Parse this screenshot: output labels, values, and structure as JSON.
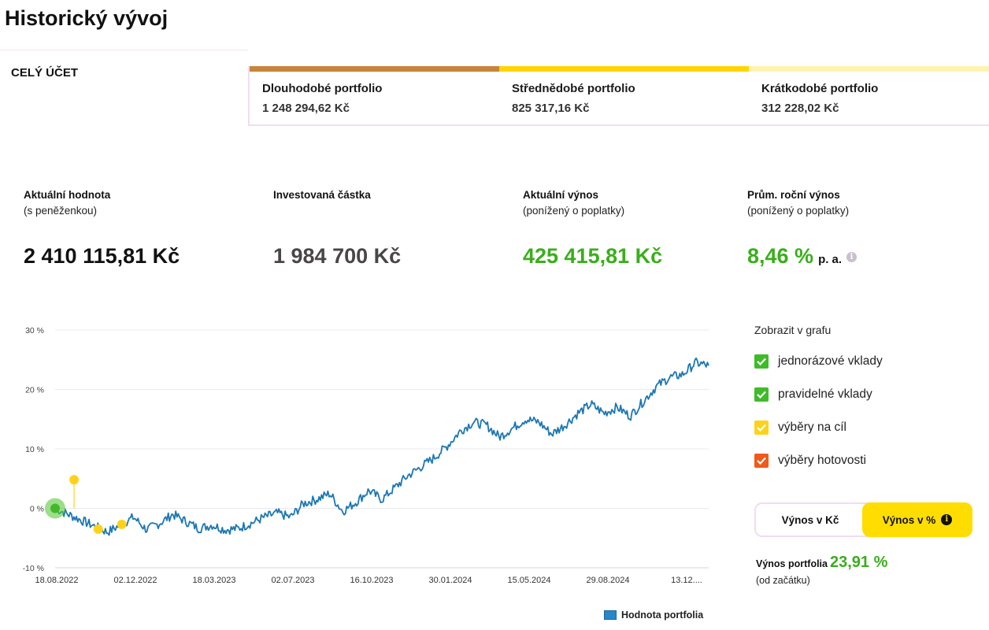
{
  "page": {
    "title": "Historický vývoj"
  },
  "tabs": {
    "all_label": "CELÝ ÚČET",
    "portfolios": [
      {
        "name": "Dlouhodobé portfolio",
        "value": "1 248 294,62 Kč",
        "color": "#c8843a"
      },
      {
        "name": "Střednědobé portfolio",
        "value": "825 317,16 Kč",
        "color": "#ffd500"
      },
      {
        "name": "Krátkodobé portfolio",
        "value": "312 228,02 Kč",
        "color": "#fff3b0"
      }
    ]
  },
  "stats": {
    "current_value": {
      "label": "Aktuální hodnota",
      "sub": "(s peněženkou)",
      "value": "2 410 115,81 Kč"
    },
    "invested": {
      "label": "Investovaná částka",
      "value": "1 984 700 Kč"
    },
    "current_return": {
      "label": "Aktuální výnos",
      "sub": "(ponížený o poplatky)",
      "value": "425 415,81 Kč"
    },
    "annual_return": {
      "label": "Prům. roční výnos",
      "sub": "(ponížený o poplatky)",
      "value": "8,46 %",
      "unit": "p. a.",
      "info_icon": "info-icon"
    }
  },
  "display_options": {
    "title": "Zobrazit v grafu",
    "items": [
      {
        "label": "jednorázové vklady",
        "checked": true,
        "color": "#3fbb2a"
      },
      {
        "label": "pravidelné vklady",
        "checked": true,
        "color": "#3fbb2a"
      },
      {
        "label": "výběry na cíl",
        "checked": true,
        "color": "#ffd21a"
      },
      {
        "label": "výběry hotovosti",
        "checked": true,
        "color": "#f05a1a"
      }
    ]
  },
  "toggle": {
    "left": "Výnos v Kč",
    "right": "Výnos v %",
    "active": "right"
  },
  "portfolio_return": {
    "label": "Výnos portfolia",
    "value": "23,91 %",
    "sub": "(od začátku)"
  },
  "legend": {
    "label": "Hodnota portfolia"
  },
  "chart_data": {
    "type": "line",
    "x_ticks": [
      "18.08.2022",
      "02.12.2022",
      "18.03.2023",
      "02.07.2023",
      "16.10.2023",
      "30.01.2024",
      "15.05.2024",
      "29.08.2024",
      "13.12...."
    ],
    "y_ticks": [
      "30 %",
      "20 %",
      "10 %",
      "0 %",
      "-10 %"
    ],
    "ylim": [
      -10,
      30
    ],
    "grid": true,
    "series": [
      {
        "name": "Hodnota portfolia",
        "color": "#1d77b3",
        "x": [
          0,
          0.03,
          0.06,
          0.08,
          0.1,
          0.12,
          0.14,
          0.16,
          0.18,
          0.2,
          0.22,
          0.24,
          0.26,
          0.28,
          0.3,
          0.32,
          0.34,
          0.36,
          0.38,
          0.4,
          0.42,
          0.44,
          0.46,
          0.48,
          0.5,
          0.52,
          0.54,
          0.56,
          0.58,
          0.6,
          0.62,
          0.64,
          0.66,
          0.68,
          0.7,
          0.72,
          0.74,
          0.76,
          0.78,
          0.8,
          0.82,
          0.84,
          0.86,
          0.88,
          0.9,
          0.92,
          0.94,
          0.96,
          0.98,
          1.0
        ],
        "y": [
          0,
          -1.5,
          -3.0,
          -4.0,
          -2.8,
          -1.5,
          -3.6,
          -2.5,
          -1.0,
          -2.2,
          -3.4,
          -2.8,
          -3.6,
          -3.4,
          -2.5,
          -1.5,
          -0.8,
          -1.5,
          0.8,
          1.5,
          2.5,
          -0.5,
          1.0,
          3.0,
          1.5,
          3.5,
          5.5,
          7.0,
          8.5,
          10.5,
          13.0,
          14.5,
          14.0,
          12.0,
          13.5,
          15.0,
          14.5,
          12.5,
          14.0,
          16.0,
          17.5,
          16.0,
          17.0,
          15.5,
          18.0,
          20.5,
          22.0,
          22.5,
          24.5,
          24.0
        ]
      }
    ],
    "events": [
      {
        "type": "jednorázové vklady",
        "x": 0,
        "y": 0,
        "color": "#5cc83a"
      },
      {
        "type": "výběry na cíl",
        "x": 0.029,
        "y": 4.8,
        "color": "#ffd21a"
      },
      {
        "type": "výběry na cíl",
        "x": 0.066,
        "y": -3.5,
        "color": "#ffd21a"
      },
      {
        "type": "výběry na cíl",
        "x": 0.102,
        "y": -2.7,
        "color": "#ffd21a"
      }
    ]
  }
}
